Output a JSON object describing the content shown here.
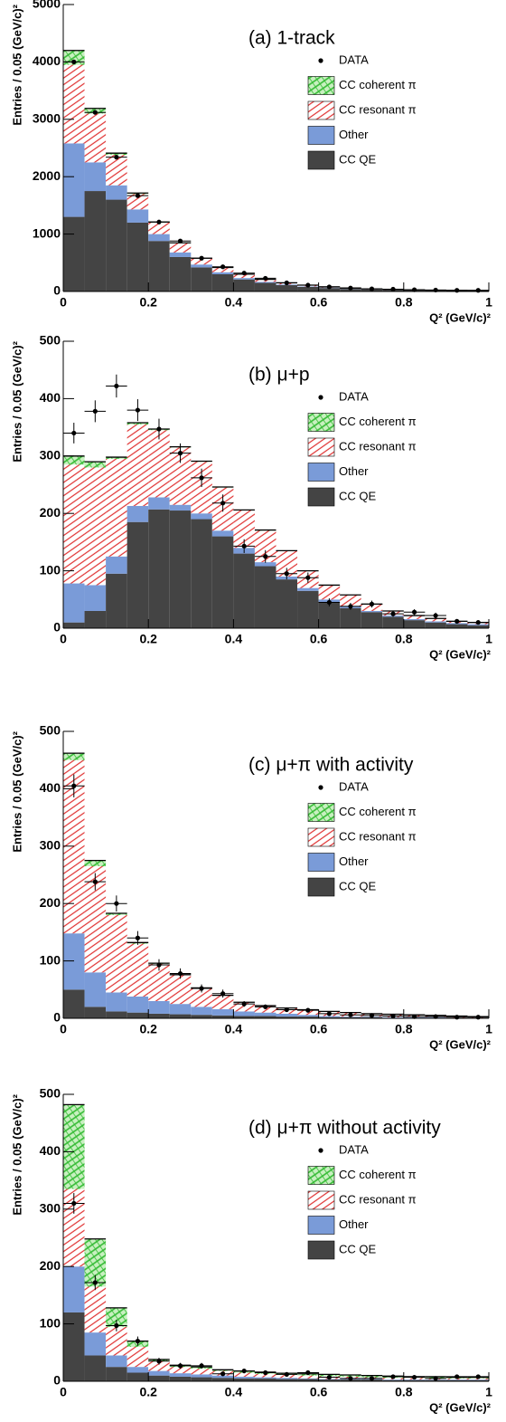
{
  "chart_data": [
    {
      "type": "histogram",
      "title": "(a) 1-track",
      "xlabel": "Q² (GeV/c)²",
      "ylabel": "Entries / 0.05 (GeV/c)²",
      "bins": [
        0,
        0.05,
        0.1,
        0.15,
        0.2,
        0.25,
        0.3,
        0.35,
        0.4,
        0.45,
        0.5,
        0.55,
        0.6,
        0.65,
        0.7,
        0.75,
        0.8,
        0.85,
        0.9,
        0.95,
        1
      ],
      "xlim": [
        0,
        1
      ],
      "ylim": [
        0,
        5000
      ],
      "xticks": [
        0,
        0.2,
        0.4,
        0.6,
        0.8,
        1
      ],
      "yticks": [
        0,
        1000,
        2000,
        3000,
        4000,
        5000
      ],
      "series": [
        {
          "name": "CC QE",
          "color": "#444444",
          "values": [
            1300,
            1750,
            1600,
            1200,
            880,
            600,
            420,
            300,
            210,
            150,
            110,
            80,
            60,
            45,
            33,
            25,
            20,
            16,
            13,
            11
          ]
        },
        {
          "name": "Other",
          "color": "#7a9bd8",
          "values": [
            1280,
            500,
            250,
            230,
            120,
            80,
            50,
            35,
            25,
            18,
            12,
            9,
            7,
            5,
            4,
            3,
            3,
            2,
            2,
            2
          ]
        },
        {
          "name": "CC resonant π",
          "color": "#e03030",
          "hatch": "diagonal",
          "values": [
            1370,
            850,
            530,
            270,
            200,
            160,
            105,
            80,
            65,
            42,
            28,
            21,
            13,
            10,
            8,
            7,
            5,
            4,
            3,
            2
          ]
        },
        {
          "name": "CC coherent π",
          "color": "#33bb33",
          "hatch": "cross",
          "values": [
            250,
            90,
            30,
            15,
            10,
            8,
            5,
            3,
            2,
            1,
            1,
            1,
            0,
            0,
            0,
            0,
            0,
            0,
            0,
            0
          ]
        }
      ],
      "data": {
        "name": "DATA",
        "values": [
          4000,
          3120,
          2340,
          1670,
          1210,
          880,
          580,
          430,
          320,
          230,
          150,
          110,
          80,
          60,
          45,
          40,
          30,
          25,
          20,
          20
        ]
      }
    },
    {
      "type": "histogram",
      "title": "(b) μ+p",
      "xlabel": "Q² (GeV/c)²",
      "ylabel": "Entries / 0.05 (GeV/c)²",
      "bins": [
        0,
        0.05,
        0.1,
        0.15,
        0.2,
        0.25,
        0.3,
        0.35,
        0.4,
        0.45,
        0.5,
        0.55,
        0.6,
        0.65,
        0.7,
        0.75,
        0.8,
        0.85,
        0.9,
        0.95,
        1
      ],
      "xlim": [
        0,
        1
      ],
      "ylim": [
        0,
        500
      ],
      "xticks": [
        0,
        0.2,
        0.4,
        0.6,
        0.8,
        1
      ],
      "yticks": [
        0,
        100,
        200,
        300,
        400,
        500
      ],
      "series": [
        {
          "name": "CC QE",
          "color": "#444444",
          "values": [
            10,
            30,
            95,
            185,
            207,
            205,
            190,
            160,
            130,
            108,
            85,
            65,
            45,
            35,
            28,
            20,
            14,
            10,
            7,
            5
          ]
        },
        {
          "name": "Other",
          "color": "#7a9bd8",
          "values": [
            68,
            45,
            30,
            28,
            21,
            10,
            10,
            10,
            10,
            7,
            5,
            5,
            5,
            3,
            2,
            2,
            2,
            2,
            2,
            2
          ]
        },
        {
          "name": "CC resonant π",
          "color": "#e03030",
          "hatch": "diagonal",
          "values": [
            207,
            205,
            170,
            142,
            117,
            100,
            90,
            75,
            65,
            55,
            45,
            30,
            25,
            20,
            12,
            8,
            6,
            5,
            3,
            3
          ]
        },
        {
          "name": "CC coherent π",
          "color": "#33bb33",
          "hatch": "cross",
          "values": [
            15,
            10,
            3,
            3,
            2,
            1,
            1,
            1,
            1,
            1,
            0,
            0,
            0,
            0,
            0,
            0,
            0,
            0,
            0,
            0
          ]
        }
      ],
      "data": {
        "name": "DATA",
        "values": [
          340,
          378,
          422,
          380,
          347,
          305,
          262,
          218,
          143,
          125,
          95,
          88,
          45,
          38,
          42,
          25,
          28,
          22,
          12,
          10
        ],
        "errors": [
          18,
          19,
          20,
          19,
          18,
          17,
          16,
          15,
          12,
          11,
          10,
          9,
          7,
          6,
          6,
          5,
          5,
          5,
          3,
          3
        ]
      }
    },
    {
      "type": "histogram",
      "title": "(c) μ+π with activity",
      "xlabel": "Q² (GeV/c)²",
      "ylabel": "Entries / 0.05 (GeV/c)²",
      "bins": [
        0,
        0.05,
        0.1,
        0.15,
        0.2,
        0.25,
        0.3,
        0.35,
        0.4,
        0.45,
        0.5,
        0.55,
        0.6,
        0.65,
        0.7,
        0.75,
        0.8,
        0.85,
        0.9,
        0.95,
        1
      ],
      "xlim": [
        0,
        1
      ],
      "ylim": [
        0,
        500
      ],
      "xticks": [
        0,
        0.2,
        0.4,
        0.6,
        0.8,
        1
      ],
      "yticks": [
        0,
        100,
        200,
        300,
        400,
        500
      ],
      "series": [
        {
          "name": "CC QE",
          "color": "#444444",
          "values": [
            50,
            20,
            12,
            10,
            8,
            7,
            6,
            5,
            4,
            4,
            3,
            3,
            2,
            2,
            2,
            1,
            1,
            1,
            1,
            1
          ]
        },
        {
          "name": "Other",
          "color": "#7a9bd8",
          "values": [
            98,
            60,
            33,
            28,
            22,
            18,
            14,
            11,
            8,
            6,
            5,
            3,
            2,
            1,
            1,
            1,
            1,
            1,
            0,
            0
          ]
        },
        {
          "name": "CC resonant π",
          "color": "#e03030",
          "hatch": "diagonal",
          "values": [
            302,
            185,
            135,
            92,
            65,
            50,
            32,
            24,
            16,
            12,
            10,
            9,
            8,
            7,
            5,
            5,
            4,
            3,
            3,
            2
          ]
        },
        {
          "name": "CC coherent π",
          "color": "#33bb33",
          "hatch": "cross",
          "values": [
            12,
            10,
            3,
            2,
            1,
            1,
            1,
            0,
            0,
            0,
            0,
            0,
            0,
            0,
            0,
            0,
            0,
            0,
            0,
            0
          ]
        }
      ],
      "data": {
        "name": "DATA",
        "values": [
          405,
          238,
          200,
          140,
          93,
          78,
          52,
          43,
          25,
          20,
          15,
          14,
          8,
          6,
          5,
          4,
          3,
          3,
          2,
          2
        ],
        "errors": [
          20,
          15,
          14,
          12,
          10,
          9,
          7,
          7,
          5,
          4,
          4,
          4,
          3,
          2,
          2,
          2,
          2,
          2,
          1,
          1
        ]
      }
    },
    {
      "type": "histogram",
      "title": "(d) μ+π without activity",
      "xlabel": "Q² (GeV/c)²",
      "ylabel": "Entries / 0.05 (GeV/c)²",
      "bins": [
        0,
        0.05,
        0.1,
        0.15,
        0.2,
        0.25,
        0.3,
        0.35,
        0.4,
        0.45,
        0.5,
        0.55,
        0.6,
        0.65,
        0.7,
        0.75,
        0.8,
        0.85,
        0.9,
        0.95,
        1
      ],
      "xlim": [
        0,
        1
      ],
      "ylim": [
        0,
        500
      ],
      "xticks": [
        0,
        0.2,
        0.4,
        0.6,
        0.8,
        1
      ],
      "yticks": [
        0,
        100,
        200,
        300,
        400,
        500
      ],
      "series": [
        {
          "name": "CC QE",
          "color": "#444444",
          "values": [
            120,
            45,
            25,
            15,
            10,
            8,
            7,
            6,
            5,
            5,
            4,
            4,
            3,
            3,
            3,
            2,
            2,
            2,
            2,
            2
          ]
        },
        {
          "name": "Other",
          "color": "#7a9bd8",
          "values": [
            80,
            40,
            20,
            10,
            8,
            6,
            5,
            4,
            3,
            2,
            2,
            1,
            1,
            1,
            1,
            1,
            1,
            1,
            1,
            1
          ]
        },
        {
          "name": "CC resonant π",
          "color": "#e03030",
          "hatch": "diagonal",
          "values": [
            135,
            80,
            50,
            35,
            17,
            11,
            10,
            8,
            7,
            6,
            5,
            5,
            5,
            4,
            3,
            3,
            3,
            2,
            2,
            2
          ]
        },
        {
          "name": "CC coherent π",
          "color": "#33bb33",
          "hatch": "cross",
          "values": [
            147,
            83,
            33,
            10,
            3,
            3,
            3,
            2,
            3,
            3,
            3,
            3,
            3,
            3,
            3,
            3,
            2,
            3,
            2,
            2
          ]
        }
      ],
      "data": {
        "name": "DATA",
        "values": [
          310,
          172,
          97,
          70,
          35,
          27,
          27,
          13,
          18,
          15,
          12,
          15,
          7,
          5,
          5,
          8,
          7,
          5,
          8,
          8
        ],
        "errors": [
          18,
          13,
          10,
          8,
          6,
          5,
          5,
          4,
          4,
          4,
          3,
          4,
          3,
          2,
          2,
          3,
          3,
          2,
          3,
          3
        ]
      }
    }
  ]
}
